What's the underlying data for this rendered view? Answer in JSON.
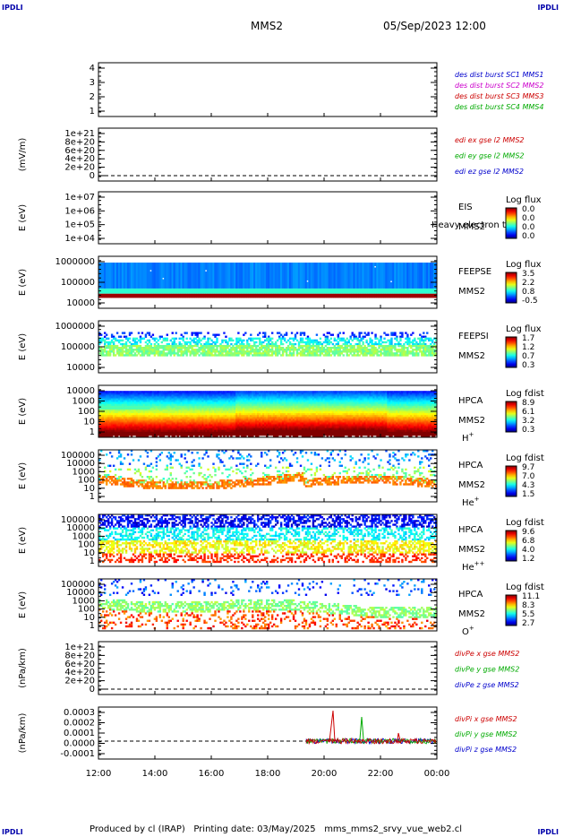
{
  "corners": {
    "tl": "IPDLI",
    "tr": "IPDLI",
    "bl": "IPDLI",
    "br": "IPDLI"
  },
  "header": {
    "spacecraft": "MMS2",
    "date": "05/Sep/2023 12:00"
  },
  "footer": "Produced by cl (IRAP)   Printing date: 03/May/2025   mms_mms2_srvy_vue_web2.cl",
  "chart_data": [
    {
      "id": "burst",
      "type": "line",
      "ylabel": "",
      "yticks": [
        "4",
        "3",
        "2",
        "1"
      ],
      "legend": [
        {
          "text": "des dist burst SC1 MMS1",
          "color": "#0000cc"
        },
        {
          "text": "des dist burst SC2 MMS2",
          "color": "#cc00cc"
        },
        {
          "text": "des dist burst SC3 MMS3",
          "color": "#cc0000"
        },
        {
          "text": "des dist burst SC4 MMS4",
          "color": "#00aa00"
        }
      ]
    },
    {
      "id": "edi",
      "type": "line",
      "ylabel": "(mV/m)",
      "yticks": [
        "1e+21",
        "8e+20",
        "6e+20",
        "4e+20",
        "2e+20",
        "0"
      ],
      "legend": [
        {
          "text": "edi ex gse l2 MMS2",
          "color": "#cc0000"
        },
        {
          "text": "edi ey gse l2 MMS2",
          "color": "#00aa00"
        },
        {
          "text": "edi ez gse l2 MMS2",
          "color": "#0000cc"
        }
      ]
    },
    {
      "id": "eis",
      "type": "heatmap",
      "ylabel": "E (eV)",
      "yticks": [
        "1e+07",
        "1e+06",
        "1e+05",
        "1e+04"
      ],
      "labels": [
        "EIS",
        "MMS2"
      ],
      "overlay": "Heavy electron tof",
      "colorbar": {
        "title": "Log flux",
        "ticks": [
          "0.0",
          "0.0",
          "0.0",
          "0.0"
        ]
      }
    },
    {
      "id": "feepse",
      "type": "heatmap",
      "ylabel": "E (eV)",
      "yticks": [
        "1000000",
        "100000",
        "10000"
      ],
      "labels": [
        "FEEPSE",
        "MMS2"
      ],
      "colorbar": {
        "title": "Log flux",
        "ticks": [
          "3.5",
          "2.2",
          "0.8",
          "-0.5"
        ]
      }
    },
    {
      "id": "feepsi",
      "type": "heatmap",
      "ylabel": "E (eV)",
      "yticks": [
        "1000000",
        "100000",
        "10000"
      ],
      "labels": [
        "FEEPSI",
        "MMS2"
      ],
      "colorbar": {
        "title": "Log flux",
        "ticks": [
          "1.7",
          "1.2",
          "0.7",
          "0.3"
        ]
      }
    },
    {
      "id": "hpca_h",
      "type": "heatmap",
      "ylabel": "E (eV)",
      "yticks": [
        "10000",
        "1000",
        "100",
        "10",
        "1"
      ],
      "labels": [
        "HPCA",
        "MMS2"
      ],
      "species": "H",
      "sup": "+",
      "colorbar": {
        "title": "Log fdist",
        "ticks": [
          "8.9",
          "6.1",
          "3.2",
          "0.3"
        ]
      }
    },
    {
      "id": "hpca_he",
      "type": "heatmap",
      "ylabel": "E (eV)",
      "yticks": [
        "100000",
        "10000",
        "1000",
        "100",
        "10",
        "1"
      ],
      "labels": [
        "HPCA",
        "MMS2"
      ],
      "species": "He",
      "sup": "+",
      "colorbar": {
        "title": "Log fdist",
        "ticks": [
          "9.7",
          "7.0",
          "4.3",
          "1.5"
        ]
      }
    },
    {
      "id": "hpca_hepp",
      "type": "heatmap",
      "ylabel": "E (eV)",
      "yticks": [
        "100000",
        "10000",
        "1000",
        "100",
        "10",
        "1"
      ],
      "labels": [
        "HPCA",
        "MMS2"
      ],
      "species": "He",
      "sup": "++",
      "colorbar": {
        "title": "Log fdist",
        "ticks": [
          "9.6",
          "6.8",
          "4.0",
          "1.2"
        ]
      }
    },
    {
      "id": "hpca_o",
      "type": "heatmap",
      "ylabel": "E (eV)",
      "yticks": [
        "100000",
        "10000",
        "1000",
        "100",
        "10",
        "1"
      ],
      "labels": [
        "HPCA",
        "MMS2"
      ],
      "species": "O",
      "sup": "+",
      "colorbar": {
        "title": "Log fdist",
        "ticks": [
          "11.1",
          "8.3",
          "5.5",
          "2.7"
        ]
      }
    },
    {
      "id": "divpe",
      "type": "line",
      "ylabel": "(nPa/km)",
      "yticks": [
        "1e+21",
        "8e+20",
        "6e+20",
        "4e+20",
        "2e+20",
        "0"
      ],
      "legend": [
        {
          "text": "divPe x gse MMS2",
          "color": "#cc0000"
        },
        {
          "text": "divPe y gse MMS2",
          "color": "#00aa00"
        },
        {
          "text": "divPe z gse MMS2",
          "color": "#0000cc"
        }
      ]
    },
    {
      "id": "divpi",
      "type": "line",
      "ylabel": "(nPa/km)",
      "yticks": [
        "0.0003",
        "0.0002",
        "0.0001",
        "0.0000",
        "-0.0001"
      ],
      "legend": [
        {
          "text": "divPi x gse MMS2",
          "color": "#cc0000"
        },
        {
          "text": "divPi y gse MMS2",
          "color": "#00aa00"
        },
        {
          "text": "divPi z gse MMS2",
          "color": "#0000cc"
        }
      ]
    }
  ],
  "xticks": [
    "12:00",
    "14:00",
    "16:00",
    "18:00",
    "20:00",
    "22:00",
    "00:00"
  ]
}
